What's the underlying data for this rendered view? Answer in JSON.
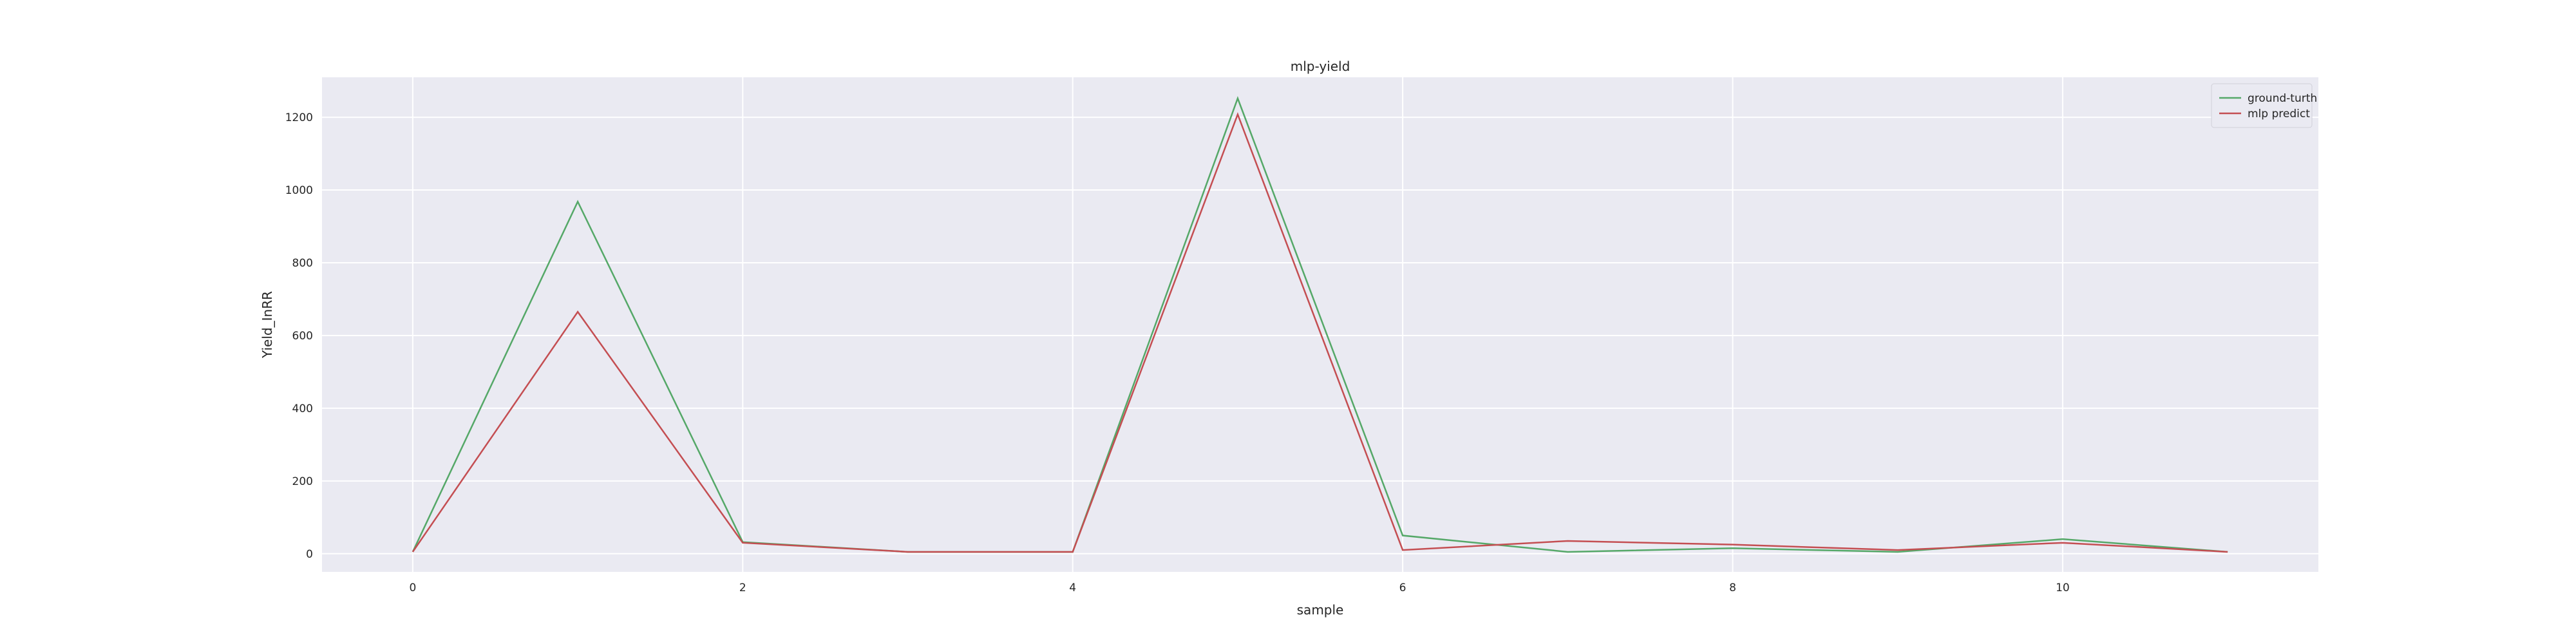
{
  "chart_data": {
    "type": "line",
    "title": "mlp-yield",
    "xlabel": "sample",
    "ylabel": "Yield_InRR",
    "x": [
      0,
      1,
      2,
      3,
      4,
      5,
      6,
      7,
      8,
      9,
      10,
      11
    ],
    "xlim": [
      -0.55,
      11.55
    ],
    "ylim": [
      -50,
      1310
    ],
    "xticks": [
      0,
      2,
      4,
      6,
      8,
      10
    ],
    "yticks": [
      0,
      200,
      400,
      600,
      800,
      1000,
      1200
    ],
    "grid": true,
    "legend_position": "top-right",
    "series": [
      {
        "name": "ground-turth",
        "color": "#55a868",
        "values": [
          5,
          968,
          32,
          5,
          5,
          1252,
          50,
          5,
          15,
          5,
          40,
          5
        ]
      },
      {
        "name": "mlp predict",
        "color": "#c44e52",
        "values": [
          5,
          665,
          30,
          5,
          5,
          1208,
          10,
          35,
          25,
          10,
          30,
          5
        ]
      }
    ]
  }
}
